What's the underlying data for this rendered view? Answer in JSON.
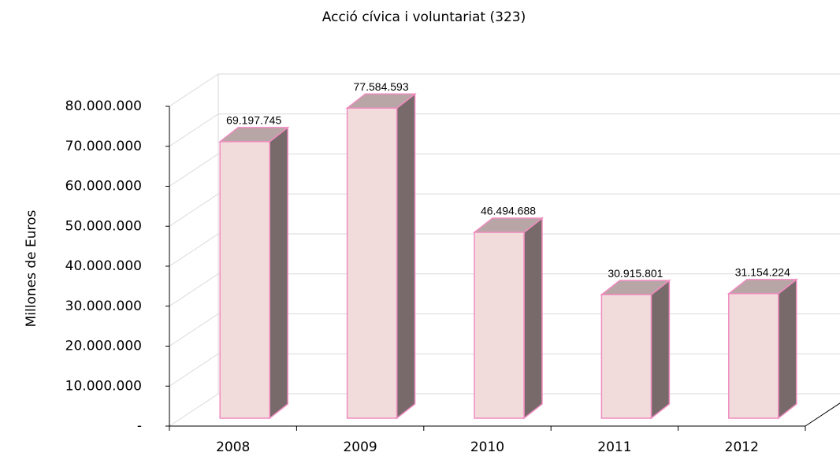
{
  "chart_data": {
    "type": "bar3d",
    "title": "Acció cívica i voluntariat (323)",
    "y_label": "Millones de Euros",
    "categories": [
      "2008",
      "2009",
      "2010",
      "2011",
      "2012"
    ],
    "values": [
      69197745,
      77584593,
      46494688,
      30915801,
      31154224
    ],
    "value_labels": [
      "69.197.745",
      "77.584.593",
      "46.494.688",
      "30.915.801",
      "31.154.224"
    ],
    "color": "#f2dcdb",
    "edge_color": "#f08cc0",
    "ylim": [
      0,
      80000000
    ],
    "yticks": [
      {
        "value": 0,
        "label": "-"
      },
      {
        "value": 10000000,
        "label": "10.000.000"
      },
      {
        "value": 20000000,
        "label": "20.000.000"
      },
      {
        "value": 30000000,
        "label": "30.000.000"
      },
      {
        "value": 40000000,
        "label": "40.000.000"
      },
      {
        "value": 50000000,
        "label": "50.000.000"
      },
      {
        "value": 60000000,
        "label": "60.000.000"
      },
      {
        "value": 70000000,
        "label": "70.000.000"
      },
      {
        "value": 80000000,
        "label": "80.000.000"
      }
    ],
    "grid": true
  }
}
